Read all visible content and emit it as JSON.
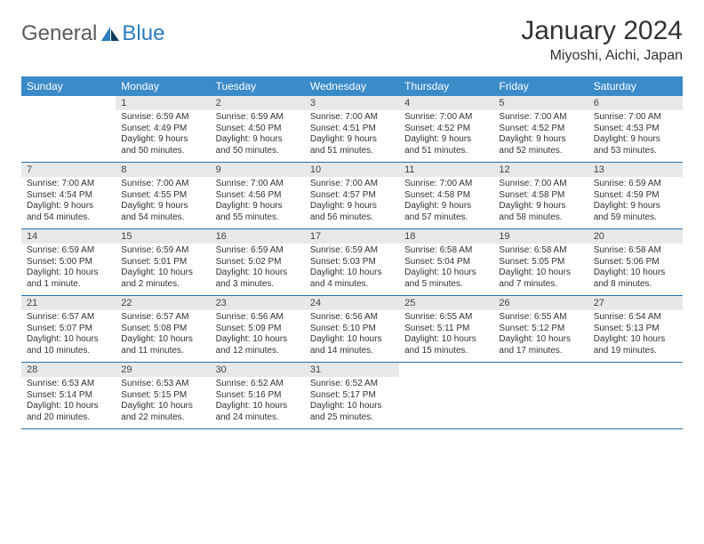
{
  "logo": {
    "text1": "General",
    "text2": "Blue"
  },
  "title": "January 2024",
  "location": "Miyoshi, Aichi, Japan",
  "colors": {
    "header_bg": "#3b8bc9",
    "header_text": "#ffffff",
    "daynum_bg": "#e8e8e8",
    "row_divider": "#2a6fa8",
    "logo_gray": "#5a5a5a",
    "logo_blue": "#2a7bbf"
  },
  "weekdays": [
    "Sunday",
    "Monday",
    "Tuesday",
    "Wednesday",
    "Thursday",
    "Friday",
    "Saturday"
  ],
  "start_day_index": 1,
  "days": [
    {
      "n": 1,
      "sunrise": "6:59 AM",
      "sunset": "4:49 PM",
      "daylight": "9 hours and 50 minutes."
    },
    {
      "n": 2,
      "sunrise": "6:59 AM",
      "sunset": "4:50 PM",
      "daylight": "9 hours and 50 minutes."
    },
    {
      "n": 3,
      "sunrise": "7:00 AM",
      "sunset": "4:51 PM",
      "daylight": "9 hours and 51 minutes."
    },
    {
      "n": 4,
      "sunrise": "7:00 AM",
      "sunset": "4:52 PM",
      "daylight": "9 hours and 51 minutes."
    },
    {
      "n": 5,
      "sunrise": "7:00 AM",
      "sunset": "4:52 PM",
      "daylight": "9 hours and 52 minutes."
    },
    {
      "n": 6,
      "sunrise": "7:00 AM",
      "sunset": "4:53 PM",
      "daylight": "9 hours and 53 minutes."
    },
    {
      "n": 7,
      "sunrise": "7:00 AM",
      "sunset": "4:54 PM",
      "daylight": "9 hours and 54 minutes."
    },
    {
      "n": 8,
      "sunrise": "7:00 AM",
      "sunset": "4:55 PM",
      "daylight": "9 hours and 54 minutes."
    },
    {
      "n": 9,
      "sunrise": "7:00 AM",
      "sunset": "4:56 PM",
      "daylight": "9 hours and 55 minutes."
    },
    {
      "n": 10,
      "sunrise": "7:00 AM",
      "sunset": "4:57 PM",
      "daylight": "9 hours and 56 minutes."
    },
    {
      "n": 11,
      "sunrise": "7:00 AM",
      "sunset": "4:58 PM",
      "daylight": "9 hours and 57 minutes."
    },
    {
      "n": 12,
      "sunrise": "7:00 AM",
      "sunset": "4:58 PM",
      "daylight": "9 hours and 58 minutes."
    },
    {
      "n": 13,
      "sunrise": "6:59 AM",
      "sunset": "4:59 PM",
      "daylight": "9 hours and 59 minutes."
    },
    {
      "n": 14,
      "sunrise": "6:59 AM",
      "sunset": "5:00 PM",
      "daylight": "10 hours and 1 minute."
    },
    {
      "n": 15,
      "sunrise": "6:59 AM",
      "sunset": "5:01 PM",
      "daylight": "10 hours and 2 minutes."
    },
    {
      "n": 16,
      "sunrise": "6:59 AM",
      "sunset": "5:02 PM",
      "daylight": "10 hours and 3 minutes."
    },
    {
      "n": 17,
      "sunrise": "6:59 AM",
      "sunset": "5:03 PM",
      "daylight": "10 hours and 4 minutes."
    },
    {
      "n": 18,
      "sunrise": "6:58 AM",
      "sunset": "5:04 PM",
      "daylight": "10 hours and 5 minutes."
    },
    {
      "n": 19,
      "sunrise": "6:58 AM",
      "sunset": "5:05 PM",
      "daylight": "10 hours and 7 minutes."
    },
    {
      "n": 20,
      "sunrise": "6:58 AM",
      "sunset": "5:06 PM",
      "daylight": "10 hours and 8 minutes."
    },
    {
      "n": 21,
      "sunrise": "6:57 AM",
      "sunset": "5:07 PM",
      "daylight": "10 hours and 10 minutes."
    },
    {
      "n": 22,
      "sunrise": "6:57 AM",
      "sunset": "5:08 PM",
      "daylight": "10 hours and 11 minutes."
    },
    {
      "n": 23,
      "sunrise": "6:56 AM",
      "sunset": "5:09 PM",
      "daylight": "10 hours and 12 minutes."
    },
    {
      "n": 24,
      "sunrise": "6:56 AM",
      "sunset": "5:10 PM",
      "daylight": "10 hours and 14 minutes."
    },
    {
      "n": 25,
      "sunrise": "6:55 AM",
      "sunset": "5:11 PM",
      "daylight": "10 hours and 15 minutes."
    },
    {
      "n": 26,
      "sunrise": "6:55 AM",
      "sunset": "5:12 PM",
      "daylight": "10 hours and 17 minutes."
    },
    {
      "n": 27,
      "sunrise": "6:54 AM",
      "sunset": "5:13 PM",
      "daylight": "10 hours and 19 minutes."
    },
    {
      "n": 28,
      "sunrise": "6:53 AM",
      "sunset": "5:14 PM",
      "daylight": "10 hours and 20 minutes."
    },
    {
      "n": 29,
      "sunrise": "6:53 AM",
      "sunset": "5:15 PM",
      "daylight": "10 hours and 22 minutes."
    },
    {
      "n": 30,
      "sunrise": "6:52 AM",
      "sunset": "5:16 PM",
      "daylight": "10 hours and 24 minutes."
    },
    {
      "n": 31,
      "sunrise": "6:52 AM",
      "sunset": "5:17 PM",
      "daylight": "10 hours and 25 minutes."
    }
  ],
  "labels": {
    "sunrise": "Sunrise:",
    "sunset": "Sunset:",
    "daylight": "Daylight:"
  }
}
